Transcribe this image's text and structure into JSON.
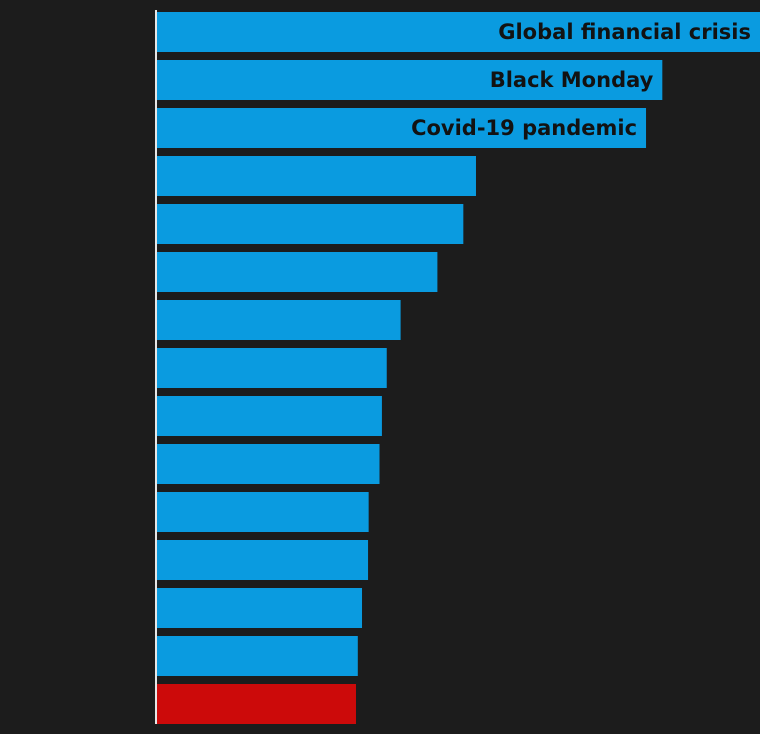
{
  "chart_data": {
    "type": "bar",
    "orientation": "horizontal",
    "title": "",
    "xlabel": "",
    "ylabel": "",
    "categories": [
      "Global financial crisis",
      "Black Monday",
      "Covid-19 pandemic",
      "",
      "",
      "",
      "",
      "",
      "",
      "",
      "",
      "",
      "",
      "",
      ""
    ],
    "values": [
      100,
      83.8,
      81.1,
      52.9,
      50.8,
      46.5,
      40.4,
      38.1,
      37.3,
      36.9,
      35.1,
      35.0,
      34.0,
      33.3,
      33.0
    ],
    "xlim": [
      0,
      100
    ],
    "grid": false,
    "legend": "none",
    "colors": {
      "default": "#0a9be0",
      "highlight": "#cc0a0a",
      "background": "#1c1c1c",
      "axis": "#e6e6e6",
      "label_text": "#121212"
    },
    "highlight_index": 14
  }
}
